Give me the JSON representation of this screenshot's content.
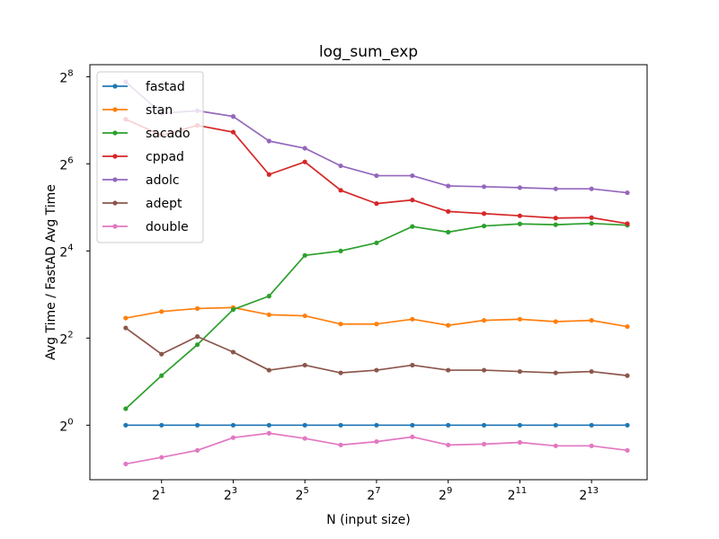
{
  "chart_data": {
    "type": "line",
    "title": "log_sum_exp",
    "xlabel": "N (input size)",
    "ylabel": "Avg Time / FastAD Avg Time",
    "x_scale": "log2",
    "y_scale": "log2",
    "xlim": [
      0.5,
      24000
    ],
    "ylim": [
      0.42,
      310
    ],
    "x_ticks": [
      {
        "value": 2,
        "base": "2",
        "exp": "1"
      },
      {
        "value": 8,
        "base": "2",
        "exp": "3"
      },
      {
        "value": 32,
        "base": "2",
        "exp": "5"
      },
      {
        "value": 128,
        "base": "2",
        "exp": "7"
      },
      {
        "value": 512,
        "base": "2",
        "exp": "9"
      },
      {
        "value": 2048,
        "base": "2",
        "exp": "11"
      },
      {
        "value": 8192,
        "base": "2",
        "exp": "13"
      }
    ],
    "y_ticks": [
      {
        "value": 1,
        "base": "2",
        "exp": "0"
      },
      {
        "value": 4,
        "base": "2",
        "exp": "2"
      },
      {
        "value": 16,
        "base": "2",
        "exp": "4"
      },
      {
        "value": 64,
        "base": "2",
        "exp": "6"
      },
      {
        "value": 256,
        "base": "2",
        "exp": "8"
      }
    ],
    "x": [
      1,
      2,
      4,
      8,
      16,
      32,
      64,
      128,
      256,
      512,
      1024,
      2048,
      4096,
      8192,
      16384
    ],
    "legend_position": "top-left",
    "series": [
      {
        "name": "fastad",
        "color": "#1f77b4",
        "values": [
          1,
          1,
          1,
          1,
          1,
          1,
          1,
          1,
          1,
          1,
          1,
          1,
          1,
          1,
          1
        ]
      },
      {
        "name": "stan",
        "color": "#ff7f0e",
        "values": [
          5.5,
          6.1,
          6.4,
          6.5,
          5.8,
          5.7,
          5.0,
          5.0,
          5.4,
          4.9,
          5.3,
          5.4,
          5.2,
          5.3,
          4.8
        ]
      },
      {
        "name": "sacado",
        "color": "#2ca02c",
        "values": [
          1.3,
          2.2,
          3.6,
          6.3,
          7.8,
          14.9,
          16.0,
          18.2,
          23.6,
          21.6,
          23.8,
          24.6,
          24.3,
          24.8,
          24.1
        ]
      },
      {
        "name": "cppad",
        "color": "#d62728",
        "values": [
          130,
          101,
          118,
          106,
          54,
          66,
          42,
          34,
          36,
          30,
          29,
          28,
          27,
          27.2,
          24.7
        ]
      },
      {
        "name": "adolc",
        "color": "#9467bd",
        "values": [
          236,
          143,
          149,
          136,
          92,
          82,
          62,
          53,
          53,
          45,
          44.5,
          43.8,
          43.0,
          43.0,
          40.4
        ]
      },
      {
        "name": "adept",
        "color": "#8c564b",
        "values": [
          4.7,
          3.1,
          4.1,
          3.2,
          2.4,
          2.6,
          2.3,
          2.4,
          2.6,
          2.4,
          2.4,
          2.35,
          2.3,
          2.35,
          2.2
        ]
      },
      {
        "name": "double",
        "color": "#e377c2",
        "values": [
          0.54,
          0.6,
          0.67,
          0.82,
          0.88,
          0.81,
          0.73,
          0.77,
          0.83,
          0.73,
          0.74,
          0.76,
          0.72,
          0.72,
          0.67
        ]
      }
    ]
  }
}
